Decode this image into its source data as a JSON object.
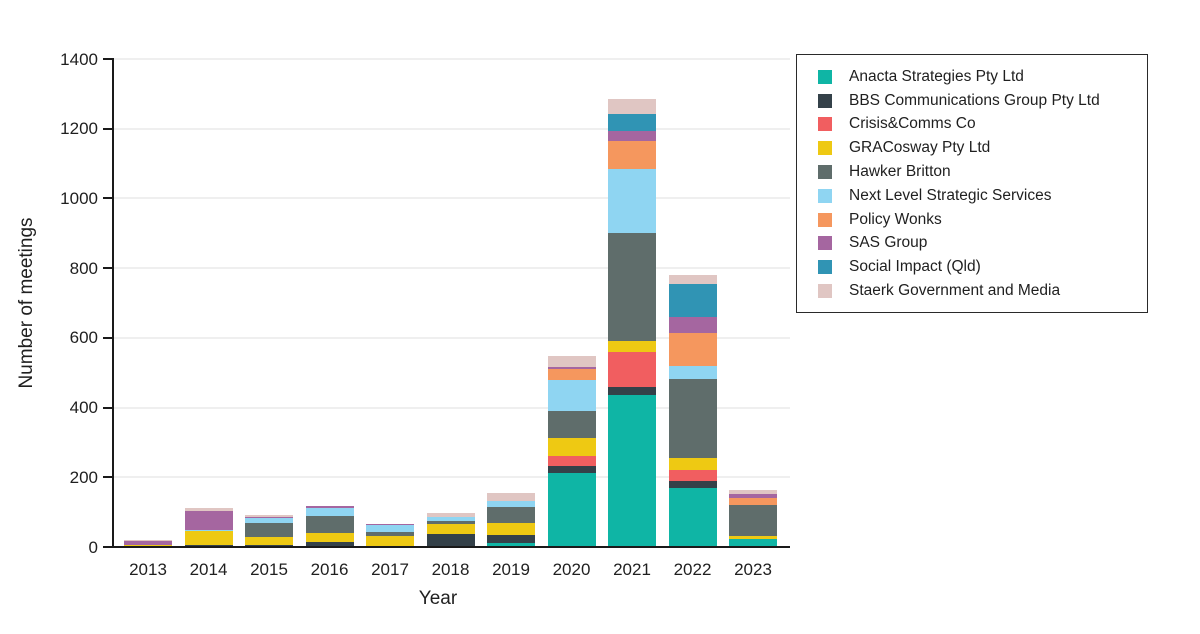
{
  "chart_data": {
    "type": "bar",
    "stacked": true,
    "title": "",
    "xlabel": "Year",
    "ylabel": "Number of meetings",
    "ylim": [
      0,
      1400
    ],
    "yticks": [
      0,
      200,
      400,
      600,
      800,
      1000,
      1200,
      1400
    ],
    "grid": "horizontal, light gray, behind bars",
    "legend_position": "outside top-right, boxed",
    "categories": [
      "2013",
      "2014",
      "2015",
      "2016",
      "2017",
      "2018",
      "2019",
      "2020",
      "2021",
      "2022",
      "2023"
    ],
    "series": [
      {
        "name": "Anacta Strategies Pty Ltd",
        "color": "#0FB5A5",
        "values": [
          0,
          0,
          0,
          0,
          0,
          0,
          12,
          212,
          435,
          170,
          22
        ]
      },
      {
        "name": "BBS Communications Group Pty Ltd",
        "color": "#344149",
        "values": [
          0,
          5,
          5,
          15,
          3,
          38,
          23,
          21,
          25,
          20,
          0
        ]
      },
      {
        "name": "Crisis&Comms Co",
        "color": "#F15E60",
        "values": [
          0,
          0,
          0,
          0,
          0,
          0,
          0,
          29,
          100,
          30,
          0
        ]
      },
      {
        "name": "GRACosway Pty Ltd",
        "color": "#EEC913",
        "values": [
          7,
          40,
          24,
          24,
          28,
          29,
          35,
          50,
          30,
          35,
          9
        ]
      },
      {
        "name": "Hawker Britton",
        "color": "#5F6D6B",
        "values": [
          0,
          0,
          41,
          50,
          12,
          9,
          46,
          78,
          310,
          228,
          90
        ]
      },
      {
        "name": "Next Level Strategic Services",
        "color": "#8FD5F2",
        "values": [
          0,
          3,
          12,
          24,
          20,
          9,
          15,
          88,
          185,
          35,
          0
        ]
      },
      {
        "name": "Policy Wonks",
        "color": "#F5975E",
        "values": [
          0,
          0,
          0,
          0,
          0,
          0,
          0,
          32,
          80,
          97,
          20
        ]
      },
      {
        "name": "SAS Group",
        "color": "#A566A0",
        "values": [
          10,
          55,
          3,
          4,
          3,
          0,
          0,
          6,
          30,
          44,
          11
        ]
      },
      {
        "name": "Social Impact (Qld)",
        "color": "#3094B4",
        "values": [
          0,
          0,
          0,
          0,
          0,
          0,
          0,
          0,
          48,
          97,
          0
        ]
      },
      {
        "name": "Staerk Government and Media",
        "color": "#E0C6C3",
        "values": [
          3,
          9,
          6,
          0,
          0,
          12,
          24,
          32,
          42,
          26,
          11
        ]
      }
    ]
  }
}
